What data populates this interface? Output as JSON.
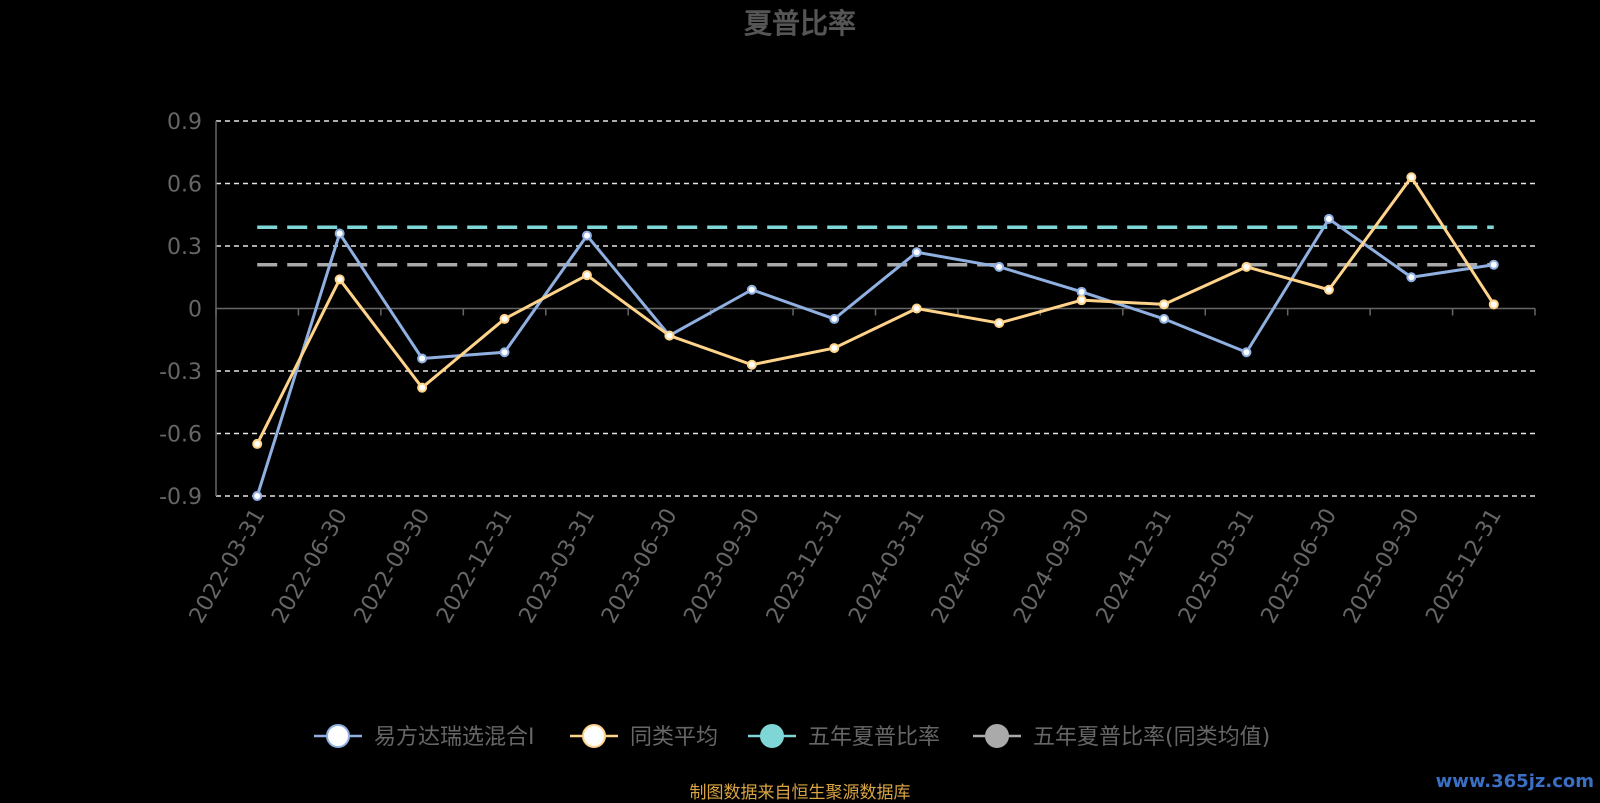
{
  "chart_data": {
    "type": "line",
    "title": "夏普比率",
    "x": [
      "2022-03-31",
      "2022-06-30",
      "2022-09-30",
      "2022-12-31",
      "2023-03-31",
      "2023-06-30",
      "2023-09-30",
      "2023-12-31",
      "2024-03-31",
      "2024-06-30",
      "2024-09-30",
      "2024-12-31",
      "2025-03-31",
      "2025-06-30",
      "2025-09-30",
      "2025-12-31"
    ],
    "ylim": [
      -0.9,
      0.9
    ],
    "yticks": [
      "0.9",
      "0.6",
      "0.3",
      "0",
      "-0.3",
      "-0.6",
      "-0.9"
    ],
    "ytick_values": [
      0.9,
      0.6,
      0.3,
      0,
      -0.3,
      -0.6,
      -0.9
    ],
    "grid": true,
    "legend_position": "bottom",
    "series": [
      {
        "name": "易方达瑞选混合I",
        "color": "#8fb0e0",
        "values": [
          -0.9,
          0.36,
          -0.24,
          -0.21,
          0.35,
          -0.13,
          0.09,
          -0.05,
          0.27,
          0.2,
          0.08,
          -0.05,
          -0.21,
          0.43,
          0.15,
          0.21
        ]
      },
      {
        "name": "同类平均",
        "color": "#ffd48a",
        "values": [
          -0.65,
          0.14,
          -0.38,
          -0.05,
          0.16,
          -0.13,
          -0.27,
          -0.19,
          0.0,
          -0.07,
          0.04,
          0.02,
          0.2,
          0.09,
          0.63,
          0.02
        ]
      },
      {
        "name": "五年夏普比率",
        "color": "#7fd6d6",
        "reference_value": 0.39
      },
      {
        "name": "五年夏普比率(同类均值)",
        "color": "#aaaaaa",
        "reference_value": 0.21
      }
    ]
  },
  "footer": {
    "source_note": "制图数据来自恒生聚源数据库",
    "watermark": "www.365jz.com"
  }
}
